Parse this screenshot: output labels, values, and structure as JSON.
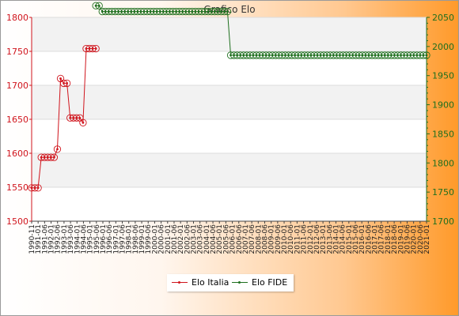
{
  "chart_data": {
    "type": "line",
    "title": "Grafico Elo",
    "grid": true,
    "legend_position": "bottom-center",
    "colors": {
      "italia": "#d0141c",
      "fide": "#1e6f1e",
      "band": "#f2f2f2"
    },
    "y_left": {
      "ylim": [
        1500,
        1800
      ],
      "ticks": [
        1500,
        1550,
        1600,
        1650,
        1700,
        1750,
        1800
      ]
    },
    "y_right": {
      "ylim": [
        1700,
        2050
      ],
      "ticks": [
        1700,
        1750,
        1800,
        1850,
        1900,
        1950,
        2000,
        2050
      ]
    },
    "x_count": 124,
    "x_labels": [
      "1990-11",
      "1991-01",
      "1991-06",
      "1992-01",
      "1992-06",
      "1993-01",
      "1993-06",
      "1994-01",
      "1994-06",
      "1995-01",
      "1995-06",
      "1996-01",
      "1996-06",
      "1997-01",
      "1997-06",
      "1998-01",
      "1998-06",
      "1999-01",
      "1999-06",
      "2000-01",
      "2000-06",
      "2001-01",
      "2001-06",
      "2002-01",
      "2002-06",
      "2003-01",
      "2003-06",
      "2004-01",
      "2004-06",
      "2005-01",
      "2005-06",
      "2006-01",
      "2006-06",
      "2007-01",
      "2007-06",
      "2008-01",
      "2008-06",
      "2009-01",
      "2009-06",
      "2010-01",
      "2010-06",
      "2011-01",
      "2011-06",
      "2012-01",
      "2012-06",
      "2013-01",
      "2013-06",
      "2014-01",
      "2014-06",
      "2015-01",
      "2015-06",
      "2016-01",
      "2016-06",
      "2017-01",
      "2017-06",
      "2018-01",
      "2018-06",
      "2019-01",
      "2019-06",
      "2020-01",
      "2020-06",
      "2021-01"
    ],
    "series": [
      {
        "name": "Elo Italia",
        "axis": "left",
        "color": "#d0141c",
        "points": [
          [
            0,
            1549
          ],
          [
            1,
            1549
          ],
          [
            2,
            1549
          ],
          [
            3,
            1594
          ],
          [
            4,
            1594
          ],
          [
            5,
            1594
          ],
          [
            6,
            1594
          ],
          [
            7,
            1594
          ],
          [
            8,
            1606
          ],
          [
            9,
            1710
          ],
          [
            10,
            1703
          ],
          [
            11,
            1703
          ],
          [
            12,
            1652
          ],
          [
            13,
            1652
          ],
          [
            14,
            1652
          ],
          [
            15,
            1652
          ],
          [
            16,
            1645
          ],
          [
            17,
            1754
          ],
          [
            18,
            1754
          ],
          [
            19,
            1754
          ],
          [
            20,
            1754
          ]
        ]
      },
      {
        "name": "Elo FIDE",
        "axis": "right",
        "color": "#1e6f1e",
        "points": [
          [
            20,
            2070
          ],
          [
            21,
            2070
          ],
          [
            22,
            2060
          ],
          [
            23,
            2060
          ],
          [
            24,
            2060
          ],
          [
            25,
            2060
          ],
          [
            26,
            2060
          ],
          [
            27,
            2060
          ],
          [
            28,
            2060
          ],
          [
            29,
            2060
          ],
          [
            30,
            2060
          ],
          [
            31,
            2060
          ],
          [
            32,
            2060
          ],
          [
            33,
            2060
          ],
          [
            34,
            2060
          ],
          [
            35,
            2060
          ],
          [
            36,
            2060
          ],
          [
            37,
            2060
          ],
          [
            38,
            2060
          ],
          [
            39,
            2060
          ],
          [
            40,
            2060
          ],
          [
            41,
            2060
          ],
          [
            42,
            2060
          ],
          [
            43,
            2060
          ],
          [
            44,
            2060
          ],
          [
            45,
            2060
          ],
          [
            46,
            2060
          ],
          [
            47,
            2060
          ],
          [
            48,
            2060
          ],
          [
            49,
            2060
          ],
          [
            50,
            2060
          ],
          [
            51,
            2060
          ],
          [
            52,
            2060
          ],
          [
            53,
            2060
          ],
          [
            54,
            2060
          ],
          [
            55,
            2060
          ],
          [
            56,
            2060
          ],
          [
            57,
            2060
          ],
          [
            58,
            2060
          ],
          [
            59,
            2060
          ],
          [
            60,
            2060
          ],
          [
            61,
            2060
          ],
          [
            62,
            1985
          ],
          [
            63,
            1985
          ],
          [
            64,
            1985
          ],
          [
            65,
            1985
          ],
          [
            66,
            1985
          ],
          [
            67,
            1985
          ],
          [
            68,
            1985
          ],
          [
            69,
            1985
          ],
          [
            70,
            1985
          ],
          [
            71,
            1985
          ],
          [
            72,
            1985
          ],
          [
            73,
            1985
          ],
          [
            74,
            1985
          ],
          [
            75,
            1985
          ],
          [
            76,
            1985
          ],
          [
            77,
            1985
          ],
          [
            78,
            1985
          ],
          [
            79,
            1985
          ],
          [
            80,
            1985
          ],
          [
            81,
            1985
          ],
          [
            82,
            1985
          ],
          [
            83,
            1985
          ],
          [
            84,
            1985
          ],
          [
            85,
            1985
          ],
          [
            86,
            1985
          ],
          [
            87,
            1985
          ],
          [
            88,
            1985
          ],
          [
            89,
            1985
          ],
          [
            90,
            1985
          ],
          [
            91,
            1985
          ],
          [
            92,
            1985
          ],
          [
            93,
            1985
          ],
          [
            94,
            1985
          ],
          [
            95,
            1985
          ],
          [
            96,
            1985
          ],
          [
            97,
            1985
          ],
          [
            98,
            1985
          ],
          [
            99,
            1985
          ],
          [
            100,
            1985
          ],
          [
            101,
            1985
          ],
          [
            102,
            1985
          ],
          [
            103,
            1985
          ],
          [
            104,
            1985
          ],
          [
            105,
            1985
          ],
          [
            106,
            1985
          ],
          [
            107,
            1985
          ],
          [
            108,
            1985
          ],
          [
            109,
            1985
          ],
          [
            110,
            1985
          ],
          [
            111,
            1985
          ],
          [
            112,
            1985
          ],
          [
            113,
            1985
          ],
          [
            114,
            1985
          ],
          [
            115,
            1985
          ],
          [
            116,
            1985
          ],
          [
            117,
            1985
          ],
          [
            118,
            1985
          ],
          [
            119,
            1985
          ],
          [
            120,
            1985
          ],
          [
            121,
            1985
          ],
          [
            122,
            1985
          ],
          [
            123,
            1985
          ]
        ]
      }
    ]
  }
}
